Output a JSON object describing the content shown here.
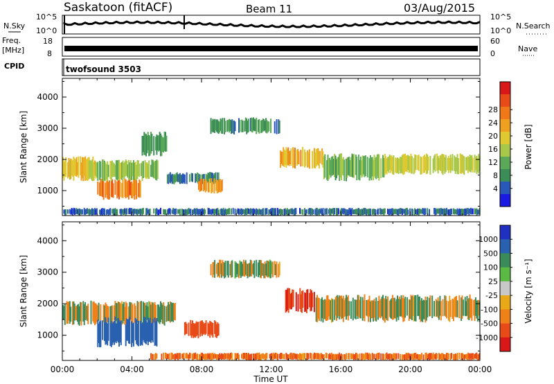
{
  "header": {
    "title": "Saskatoon (fitACF)",
    "beam": "Beam 11",
    "date": "03/Aug/2015"
  },
  "noise_panel": {
    "left_label": "N.Sky",
    "right_label": "N.Search",
    "left_ticks": [
      "10^5",
      "10^0"
    ],
    "right_ticks": [
      "10^5",
      "10^0"
    ]
  },
  "freq_panel": {
    "left_label_line1": "Freq.",
    "left_label_line2": "[MHz]",
    "right_label": "Nave",
    "left_ticks": [
      "18",
      "8"
    ],
    "right_ticks": [
      "60",
      "0"
    ]
  },
  "cpid_panel": {
    "label": "CPID",
    "program": "twofsound 3503"
  },
  "chart_data": [
    {
      "type": "heatmap",
      "name": "Power",
      "ylabel": "Slant Range [km]",
      "xlabel": "",
      "ylim": [
        200,
        4600
      ],
      "yticks": [
        "1000",
        "2000",
        "3000",
        "4000"
      ],
      "ytick_values": [
        1000,
        2000,
        3000,
        4000
      ],
      "colorbar_label": "Power [dB]",
      "colorbar_ticks": [
        "4",
        "8",
        "12",
        "16",
        "20",
        "24",
        "28"
      ],
      "colorbar_colors": [
        "#1a1ae0",
        "#2a58b8",
        "#3c8c58",
        "#5aa858",
        "#a8c84a",
        "#e0c830",
        "#f0a020",
        "#f07818",
        "#e84a18",
        "#d81818"
      ],
      "regions": [
        {
          "start_hour": 0.0,
          "end_hour": 2.0,
          "range_low": 1300,
          "range_high": 2100,
          "value": 18
        },
        {
          "start_hour": 2.0,
          "end_hour": 4.5,
          "range_low": 700,
          "range_high": 1400,
          "value": 24
        },
        {
          "start_hour": 1.5,
          "end_hour": 5.5,
          "range_low": 1300,
          "range_high": 2000,
          "value": 14
        },
        {
          "start_hour": 4.5,
          "end_hour": 6.0,
          "range_low": 2100,
          "range_high": 2900,
          "value": 10
        },
        {
          "start_hour": 6.0,
          "end_hour": 9.0,
          "range_low": 1200,
          "range_high": 1600,
          "value": 8
        },
        {
          "start_hour": 7.8,
          "end_hour": 9.2,
          "range_low": 900,
          "range_high": 1400,
          "value": 22
        },
        {
          "start_hour": 8.5,
          "end_hour": 12.5,
          "range_low": 2800,
          "range_high": 3350,
          "value": 9
        },
        {
          "start_hour": 12.5,
          "end_hour": 15.0,
          "range_low": 1700,
          "range_high": 2400,
          "value": 20
        },
        {
          "start_hour": 15.0,
          "end_hour": 18.5,
          "range_low": 1300,
          "range_high": 2200,
          "value": 12
        },
        {
          "start_hour": 18.5,
          "end_hour": 24.0,
          "range_low": 1500,
          "range_high": 2200,
          "value": 16
        },
        {
          "start_hour": 0.0,
          "end_hour": 24.0,
          "range_low": 200,
          "range_high": 450,
          "value": 6
        }
      ]
    },
    {
      "type": "heatmap",
      "name": "Velocity",
      "ylabel": "Slant Range [km]",
      "xlabel": "Time UT",
      "ylim": [
        200,
        4600
      ],
      "yticks": [
        "1000",
        "2000",
        "3000",
        "4000"
      ],
      "ytick_values": [
        1000,
        2000,
        3000,
        4000
      ],
      "xticks": [
        "00:00",
        "04:00",
        "08:00",
        "12:00",
        "16:00",
        "20:00",
        "00:00"
      ],
      "xtick_hours": [
        0,
        4,
        8,
        12,
        16,
        20,
        24
      ],
      "colorbar_label": "Velocity [m s⁻¹]",
      "colorbar_ticks": [
        "1000",
        "500",
        "100",
        "25",
        "-25",
        "-100",
        "-500",
        "-1000"
      ],
      "colorbar_colors": [
        "#2030c0",
        "#2a60b0",
        "#3a8a5a",
        "#5aba44",
        "#c8c8c8",
        "#e8a818",
        "#f08018",
        "#e84a18",
        "#d81818"
      ],
      "regions": [
        {
          "start_hour": 0.0,
          "end_hour": 6.5,
          "range_low": 1300,
          "range_high": 2100,
          "value": 0
        },
        {
          "start_hour": 2.0,
          "end_hour": 5.5,
          "range_low": 600,
          "range_high": 1600,
          "value": 150
        },
        {
          "start_hour": 7.0,
          "end_hour": 9.0,
          "range_low": 900,
          "range_high": 1500,
          "value": -150
        },
        {
          "start_hour": 8.5,
          "end_hour": 12.5,
          "range_low": 2800,
          "range_high": 3400,
          "value": 0
        },
        {
          "start_hour": 12.8,
          "end_hour": 14.5,
          "range_low": 1700,
          "range_high": 2500,
          "value": -400
        },
        {
          "start_hour": 14.5,
          "end_hour": 24.0,
          "range_low": 1400,
          "range_high": 2300,
          "value": 0
        },
        {
          "start_hour": 5.0,
          "end_hour": 24.0,
          "range_low": 200,
          "range_high": 450,
          "value": -60
        }
      ]
    }
  ]
}
